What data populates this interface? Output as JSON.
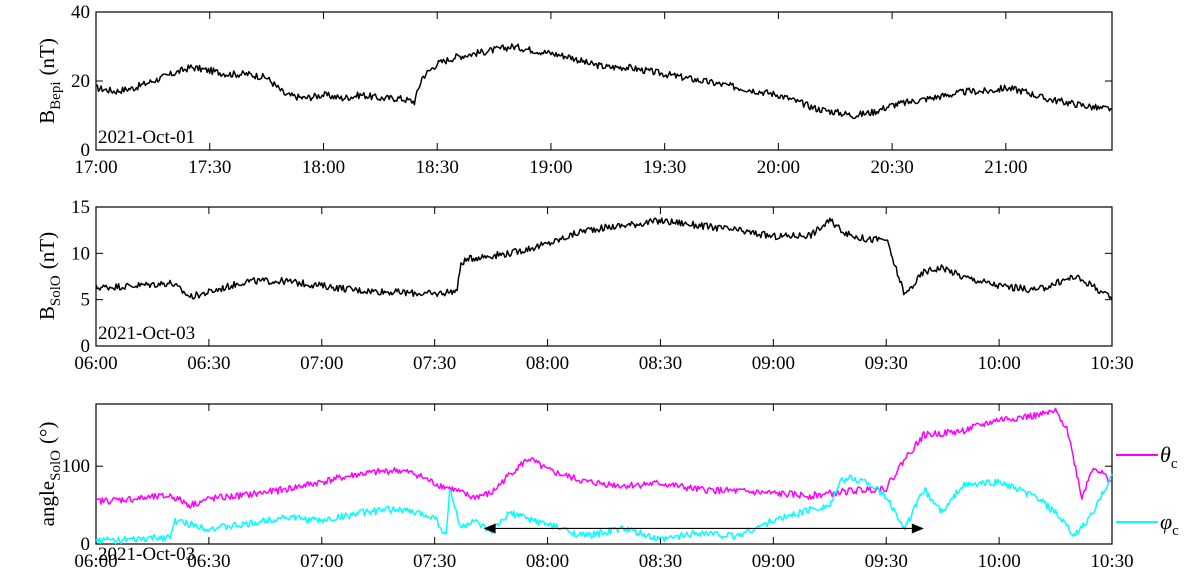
{
  "chart_data": [
    {
      "type": "line",
      "ylabel_main": "B",
      "ylabel_sub": "Bepi",
      "ylabel_unit": "(nT)",
      "annotation": "2021-Oct-01",
      "ylim": [
        0,
        40
      ],
      "yticks": [
        "0",
        "20",
        "40"
      ],
      "xlim": [
        0,
        268
      ],
      "xticks": [
        "17:00",
        "17:30",
        "18:00",
        "18:30",
        "19:00",
        "19:30",
        "20:00",
        "20:30",
        "21:00"
      ],
      "grid": false,
      "series": [
        {
          "color": "#000000",
          "x": [
            0,
            5,
            10,
            15,
            20,
            25,
            30,
            35,
            40,
            45,
            50,
            55,
            60,
            65,
            70,
            75,
            80,
            84,
            86,
            90,
            95,
            100,
            105,
            110,
            115,
            120,
            125,
            130,
            135,
            140,
            145,
            150,
            155,
            160,
            165,
            170,
            175,
            180,
            185,
            190,
            195,
            200,
            205,
            210,
            215,
            220,
            225,
            230,
            235,
            240,
            245,
            250,
            255,
            260,
            265,
            268
          ],
          "y": [
            18,
            17,
            18,
            20,
            22,
            24,
            23,
            22,
            22,
            21,
            16,
            15,
            16,
            15,
            16,
            15,
            15,
            14,
            21,
            25,
            27,
            28,
            29,
            30,
            29,
            28,
            27,
            25,
            24,
            24,
            23,
            22,
            21,
            20,
            19,
            18,
            17,
            16,
            14,
            12,
            11,
            10,
            11,
            13,
            14,
            15,
            16,
            17,
            17,
            18,
            17,
            15,
            14,
            13,
            12,
            12
          ]
        }
      ]
    },
    {
      "type": "line",
      "ylabel_main": "B",
      "ylabel_sub": "SolO",
      "ylabel_unit": "(nT)",
      "annotation": "2021-Oct-03",
      "ylim": [
        0,
        15
      ],
      "yticks": [
        "0",
        "5",
        "10",
        "15"
      ],
      "xlim": [
        0,
        270
      ],
      "xticks": [
        "06:00",
        "06:30",
        "07:00",
        "07:30",
        "08:00",
        "08:30",
        "09:00",
        "09:30",
        "10:00",
        "10:30"
      ],
      "grid": false,
      "series": [
        {
          "color": "#000000",
          "x": [
            0,
            10,
            20,
            25,
            30,
            40,
            50,
            60,
            70,
            80,
            90,
            96,
            97,
            100,
            110,
            120,
            130,
            140,
            150,
            155,
            160,
            170,
            180,
            190,
            195,
            200,
            205,
            210,
            212,
            215,
            220,
            225,
            230,
            240,
            250,
            260,
            265,
            270
          ],
          "y": [
            6.3,
            6.5,
            6.8,
            5.3,
            5.8,
            7.0,
            7.0,
            6.5,
            6.0,
            5.8,
            5.6,
            6.0,
            9.0,
            9.5,
            10.0,
            11.0,
            12.5,
            13.0,
            13.5,
            13.3,
            13.0,
            12.5,
            11.8,
            12.0,
            13.5,
            12.0,
            11.5,
            11.5,
            9.0,
            5.5,
            8.0,
            8.5,
            7.5,
            6.5,
            6.0,
            7.5,
            6.5,
            5.0
          ]
        }
      ]
    },
    {
      "type": "line",
      "ylabel_main": "angle",
      "ylabel_sub": "SolO",
      "ylabel_unit": "(°)",
      "annotation": "2021-Oct-03",
      "ylim": [
        0,
        180
      ],
      "yticks": [
        "0",
        "100"
      ],
      "xlim": [
        0,
        270
      ],
      "xticks": [
        "06:00",
        "06:30",
        "07:00",
        "07:30",
        "08:00",
        "08:30",
        "09:00",
        "09:30",
        "10:00",
        "10:30"
      ],
      "grid": false,
      "arrow": {
        "x_start": 103,
        "x_end": 220,
        "y": 20
      },
      "legend_position": "right",
      "series": [
        {
          "legend_symbol": "θ",
          "legend_sub": "c",
          "color": "#ff00ff",
          "x": [
            0,
            10,
            20,
            25,
            30,
            40,
            50,
            60,
            70,
            80,
            85,
            90,
            95,
            100,
            105,
            110,
            115,
            120,
            130,
            140,
            150,
            160,
            170,
            180,
            190,
            200,
            205,
            210,
            215,
            220,
            230,
            240,
            250,
            255,
            258,
            262,
            265,
            270
          ],
          "y": [
            55,
            58,
            62,
            50,
            58,
            63,
            70,
            80,
            90,
            95,
            90,
            78,
            70,
            60,
            65,
            90,
            110,
            95,
            80,
            75,
            78,
            70,
            68,
            65,
            62,
            68,
            70,
            72,
            110,
            140,
            145,
            160,
            165,
            170,
            150,
            60,
            100,
            80
          ]
        },
        {
          "legend_symbol": "φ",
          "legend_sub": "c",
          "color": "#00ffff",
          "x": [
            0,
            10,
            20,
            21,
            30,
            40,
            50,
            60,
            70,
            80,
            85,
            90,
            93,
            94,
            97,
            100,
            105,
            110,
            120,
            130,
            140,
            150,
            160,
            170,
            180,
            190,
            195,
            198,
            200,
            205,
            210,
            215,
            220,
            225,
            230,
            240,
            245,
            250,
            255,
            260,
            265,
            270
          ],
          "y": [
            5,
            5,
            10,
            30,
            20,
            25,
            35,
            30,
            40,
            45,
            40,
            35,
            10,
            70,
            20,
            30,
            15,
            40,
            25,
            10,
            20,
            5,
            15,
            10,
            30,
            45,
            50,
            80,
            85,
            80,
            60,
            20,
            70,
            40,
            75,
            80,
            70,
            60,
            40,
            10,
            40,
            90
          ]
        }
      ]
    }
  ]
}
